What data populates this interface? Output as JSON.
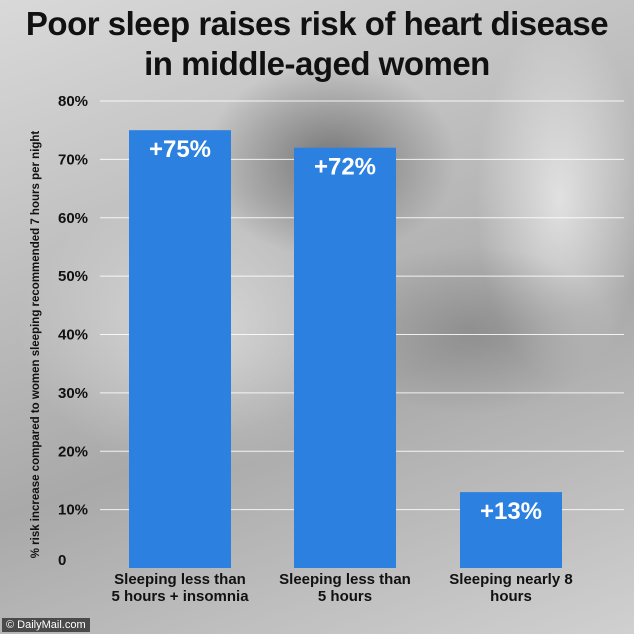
{
  "title_lines": [
    "Poor sleep raises risk of heart disease",
    "in middle-aged women"
  ],
  "credit": "© DailyMail.com",
  "colors": {
    "bar": "#2c80e0",
    "gridline": "#ffffff",
    "text": "#111111"
  },
  "chart_data": {
    "type": "bar",
    "title": "Poor sleep raises risk of heart disease in middle-aged women",
    "ylabel": "% risk increase compared to women sleeping recommended 7 hours per night",
    "xlabel": "",
    "ylim": [
      0,
      80
    ],
    "yticks": [
      0,
      10,
      20,
      30,
      40,
      50,
      60,
      70,
      80
    ],
    "ytick_labels": [
      "0",
      "10%",
      "20%",
      "30%",
      "40%",
      "50%",
      "60%",
      "70%",
      "80%"
    ],
    "categories": [
      [
        "Sleeping less than",
        "5 hours + insomnia"
      ],
      [
        "Sleeping less than",
        "5 hours"
      ],
      [
        "Sleeping nearly 8",
        "hours"
      ]
    ],
    "values": [
      75,
      72,
      13
    ],
    "data_labels": [
      "+75%",
      "+72%",
      "+13%"
    ],
    "grid": true,
    "legend": "none"
  }
}
